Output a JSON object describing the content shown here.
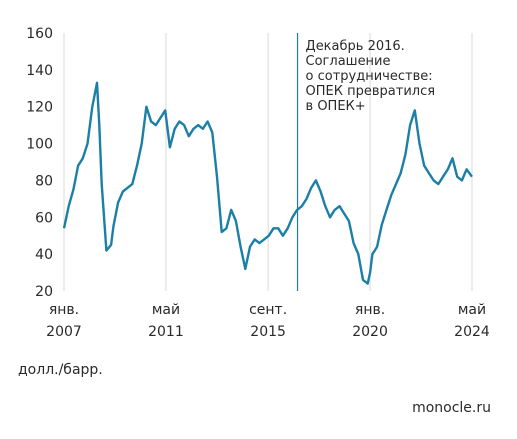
{
  "chart_data": {
    "type": "line",
    "title": "",
    "xlabel": "",
    "ylabel": "",
    "unit_label": "долл./барр.",
    "ylim": [
      20,
      160
    ],
    "xlim": [
      2007.0,
      2024.33
    ],
    "y_ticks": [
      20,
      40,
      60,
      80,
      100,
      120,
      140,
      160
    ],
    "x_ticks": [
      {
        "x": 2007.0,
        "top": "янв.",
        "bottom": "2007"
      },
      {
        "x": 2011.33,
        "top": "май",
        "bottom": "2011"
      },
      {
        "x": 2015.67,
        "top": "сент.",
        "bottom": "2015"
      },
      {
        "x": 2020.0,
        "top": "янв.",
        "bottom": "2020"
      },
      {
        "x": 2024.33,
        "top": "май",
        "bottom": "2024"
      }
    ],
    "grid": "vertical",
    "series": [
      {
        "color": "#1b7fa6",
        "x": [
          2007.0,
          2007.2,
          2007.4,
          2007.6,
          2007.8,
          2008.0,
          2008.2,
          2008.4,
          2008.5,
          2008.6,
          2008.8,
          2009.0,
          2009.1,
          2009.3,
          2009.5,
          2009.7,
          2009.9,
          2010.1,
          2010.3,
          2010.5,
          2010.7,
          2010.9,
          2011.1,
          2011.3,
          2011.5,
          2011.7,
          2011.9,
          2012.1,
          2012.3,
          2012.5,
          2012.7,
          2012.9,
          2013.1,
          2013.3,
          2013.5,
          2013.7,
          2013.9,
          2014.1,
          2014.3,
          2014.5,
          2014.7,
          2014.9,
          2015.1,
          2015.3,
          2015.5,
          2015.7,
          2015.9,
          2016.1,
          2016.3,
          2016.5,
          2016.7,
          2016.9,
          2017.1,
          2017.3,
          2017.5,
          2017.7,
          2017.9,
          2018.1,
          2018.3,
          2018.5,
          2018.7,
          2018.9,
          2019.1,
          2019.3,
          2019.5,
          2019.7,
          2019.9,
          2020.0,
          2020.1,
          2020.2,
          2020.3,
          2020.5,
          2020.7,
          2020.9,
          2021.1,
          2021.3,
          2021.5,
          2021.7,
          2021.9,
          2022.1,
          2022.3,
          2022.5,
          2022.7,
          2022.9,
          2023.1,
          2023.3,
          2023.5,
          2023.7,
          2023.9,
          2024.1,
          2024.33
        ],
        "y": [
          54,
          66,
          75,
          88,
          92,
          100,
          120,
          133,
          110,
          78,
          42,
          45,
          55,
          68,
          74,
          76,
          78,
          88,
          100,
          120,
          112,
          110,
          114,
          118,
          98,
          108,
          112,
          110,
          104,
          108,
          110,
          108,
          112,
          106,
          82,
          52,
          54,
          64,
          58,
          44,
          32,
          44,
          48,
          46,
          48,
          50,
          54,
          54,
          50,
          54,
          60,
          64,
          66,
          70,
          76,
          80,
          74,
          66,
          60,
          64,
          66,
          62,
          58,
          46,
          40,
          26,
          24,
          30,
          40,
          42,
          44,
          56,
          64,
          72,
          78,
          84,
          94,
          110,
          118,
          100,
          88,
          84,
          80,
          78,
          82,
          86,
          92,
          82,
          80,
          86,
          82
        ]
      }
    ],
    "annotations": [
      {
        "x": 2016.92,
        "lines": [
          "Декабрь 2016.",
          "Соглашение",
          "о сотрудничестве:",
          "ОПЕК превратился",
          "в ОПЕК+"
        ]
      }
    ]
  },
  "footer": {
    "unit": "долл./барр.",
    "source": "monocle.ru"
  }
}
